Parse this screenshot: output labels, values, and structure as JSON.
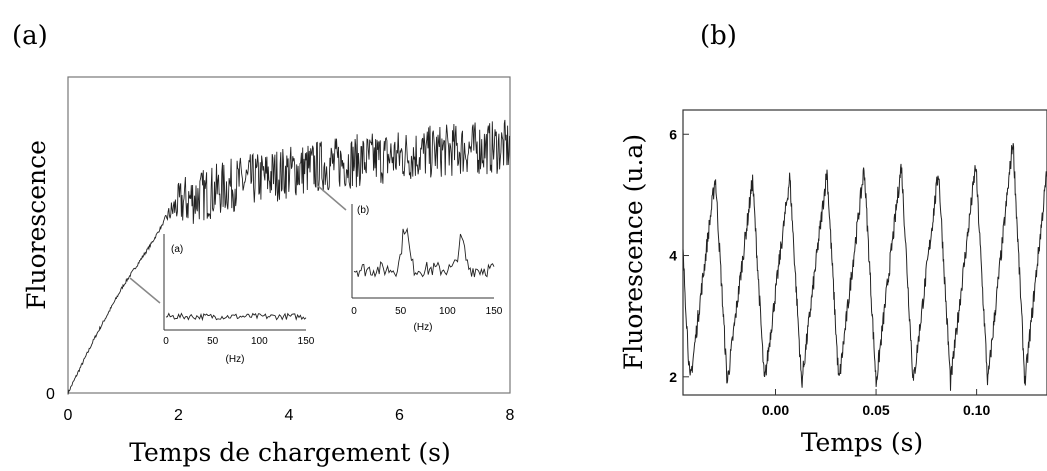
{
  "chart_data": [
    {
      "panel_label": "(a)",
      "type": "line",
      "xlabel": "Temps de chargement (s)",
      "ylabel": "Fluorescence",
      "xlim": [
        0,
        8
      ],
      "ylim": [
        0,
        1
      ],
      "x_ticks": [
        "0",
        "2",
        "4",
        "6",
        "8"
      ],
      "y_ticks": [
        "0"
      ],
      "grid": false,
      "envelope": {
        "x": [
          0,
          0.5,
          1.0,
          1.5,
          1.8,
          2.0,
          3.0,
          4.0,
          5.0,
          6.0,
          7.0,
          8.0
        ],
        "y": [
          0,
          0.18,
          0.34,
          0.47,
          0.56,
          0.6,
          0.66,
          0.7,
          0.73,
          0.75,
          0.77,
          0.78
        ]
      },
      "oscillation_amplitude_after_2s": 0.09,
      "insets": [
        {
          "label": "(a)",
          "xlabel": "(Hz)",
          "x_ticks": [
            "0",
            "50",
            "100",
            "150"
          ],
          "xlim": [
            0,
            150
          ],
          "points_to_time_s": 1.0,
          "description": "noise, no peak"
        },
        {
          "label": "(b)",
          "xlabel": "(Hz)",
          "x_ticks": [
            "0",
            "50",
            "100",
            "150"
          ],
          "xlim": [
            0,
            150
          ],
          "points_to_time_s": 4.5,
          "peaks_hz": [
            55,
            115
          ]
        }
      ]
    },
    {
      "panel_label": "(b)",
      "type": "line",
      "xlabel": "Temps (s)",
      "ylabel": "Fluorescence (u.a)",
      "xlim": [
        -0.046,
        0.135
      ],
      "ylim": [
        1.7,
        6.4
      ],
      "x_ticks": [
        "0.00",
        "0.05",
        "0.10"
      ],
      "x_tick_values": [
        0.0,
        0.05,
        0.1
      ],
      "y_ticks": [
        "2",
        "4",
        "6"
      ],
      "y_tick_values": [
        2,
        4,
        6
      ],
      "grid": false,
      "period_s": 0.0185,
      "minimum_level": 1.9,
      "peak_levels": [
        5.5,
        5.3,
        5.25,
        5.3,
        5.4,
        5.45,
        5.5,
        5.4,
        5.5,
        5.9
      ]
    }
  ]
}
